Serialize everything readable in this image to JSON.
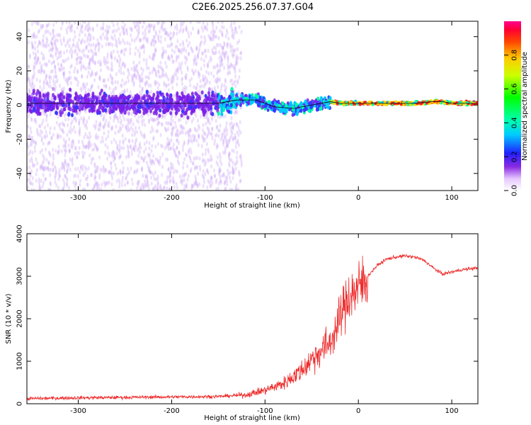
{
  "title": "C2E6.2025.256.07.37.G04",
  "chart_data": [
    {
      "type": "heatmap",
      "xlabel": "Height of straight line (km)",
      "ylabel": "Frequency (Hz)",
      "xlim": [
        -355,
        128
      ],
      "ylim": [
        -50,
        49
      ],
      "xticks": [
        -300,
        -200,
        -100,
        0,
        100
      ],
      "yticks": [
        -40,
        -20,
        0,
        20,
        40
      ],
      "colorbar": {
        "label": "Normalized spectral amplitude",
        "range": [
          0,
          1
        ],
        "ticks": [
          0.0,
          0.2,
          0.4,
          0.6,
          0.8
        ],
        "tick_labels": [
          "0.0",
          "0.2",
          "0.4",
          "0.6",
          "0.8"
        ]
      },
      "centerline": {
        "x": [
          -355,
          -200,
          -150,
          -130,
          -110,
          -90,
          -70,
          -50,
          -40,
          -30,
          -20,
          0,
          20,
          60,
          80,
          90,
          100,
          128
        ],
        "y": [
          1,
          1,
          1,
          3,
          3,
          -1,
          -2,
          0,
          1,
          2,
          1,
          1,
          1,
          1,
          2,
          2,
          1,
          1
        ]
      }
    },
    {
      "type": "line",
      "xlabel": "Height of straight line (km)",
      "ylabel": "SNR (10 * v/v)",
      "xlim": [
        -355,
        128
      ],
      "ylim": [
        0,
        4000
      ],
      "xticks": [
        -300,
        -200,
        -100,
        0,
        100
      ],
      "yticks": [
        0,
        1000,
        2000,
        3000,
        4000
      ],
      "series": [
        {
          "name": "SNR",
          "color": "#ee2b2b",
          "x": [
            -355,
            -300,
            -250,
            -200,
            -150,
            -120,
            -100,
            -80,
            -60,
            -50,
            -40,
            -30,
            -25,
            -20,
            -15,
            -10,
            0,
            5,
            10,
            20,
            30,
            40,
            50,
            60,
            70,
            80,
            90,
            100,
            110,
            128
          ],
          "y": [
            120,
            140,
            150,
            160,
            170,
            210,
            320,
            480,
            800,
            1050,
            1250,
            1450,
            1700,
            2000,
            2300,
            2550,
            2700,
            2850,
            3000,
            3250,
            3400,
            3450,
            3480,
            3450,
            3380,
            3200,
            3050,
            3100,
            3150,
            3200
          ]
        }
      ]
    }
  ]
}
